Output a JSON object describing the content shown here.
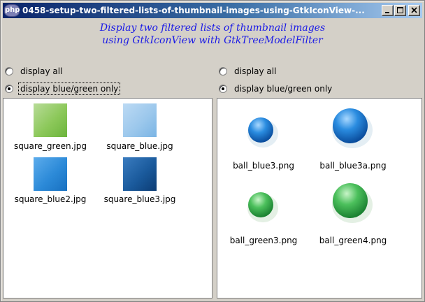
{
  "window": {
    "title": "0458-setup-two-filtered-lists-of-thumbnail-images-using-GtkIconView-...",
    "icon_text": "php",
    "buttons": [
      "minimize-icon",
      "maximize-icon",
      "close-icon"
    ]
  },
  "header": {
    "line1": "Display two filtered lists of thumbnail images",
    "line2": "using GtkIconView with GtkTreeModelFilter",
    "color": "#1a1ae6"
  },
  "left": {
    "radios": [
      {
        "label": "display all",
        "checked": false
      },
      {
        "label": "display blue/green only",
        "checked": true
      }
    ],
    "items": [
      {
        "label": "square_green.jpg",
        "color": "#8cc85a"
      },
      {
        "label": "square_blue.jpg",
        "color": "#9cc8ec"
      },
      {
        "label": "square_blue2.jpg",
        "color": "#2c8ad8"
      },
      {
        "label": "square_blue3.jpg",
        "color": "#1a5a9c"
      }
    ]
  },
  "right": {
    "radios": [
      {
        "label": "display all",
        "checked": false
      },
      {
        "label": "display blue/green only",
        "checked": true
      }
    ],
    "items": [
      {
        "label": "ball_blue3.png",
        "color": "#1a7ad8"
      },
      {
        "label": "ball_blue3a.png",
        "color": "#1a7ad8"
      },
      {
        "label": "ball_green3.png",
        "color": "#3cb84c"
      },
      {
        "label": "ball_green4.png",
        "color": "#3cb84c"
      }
    ]
  }
}
